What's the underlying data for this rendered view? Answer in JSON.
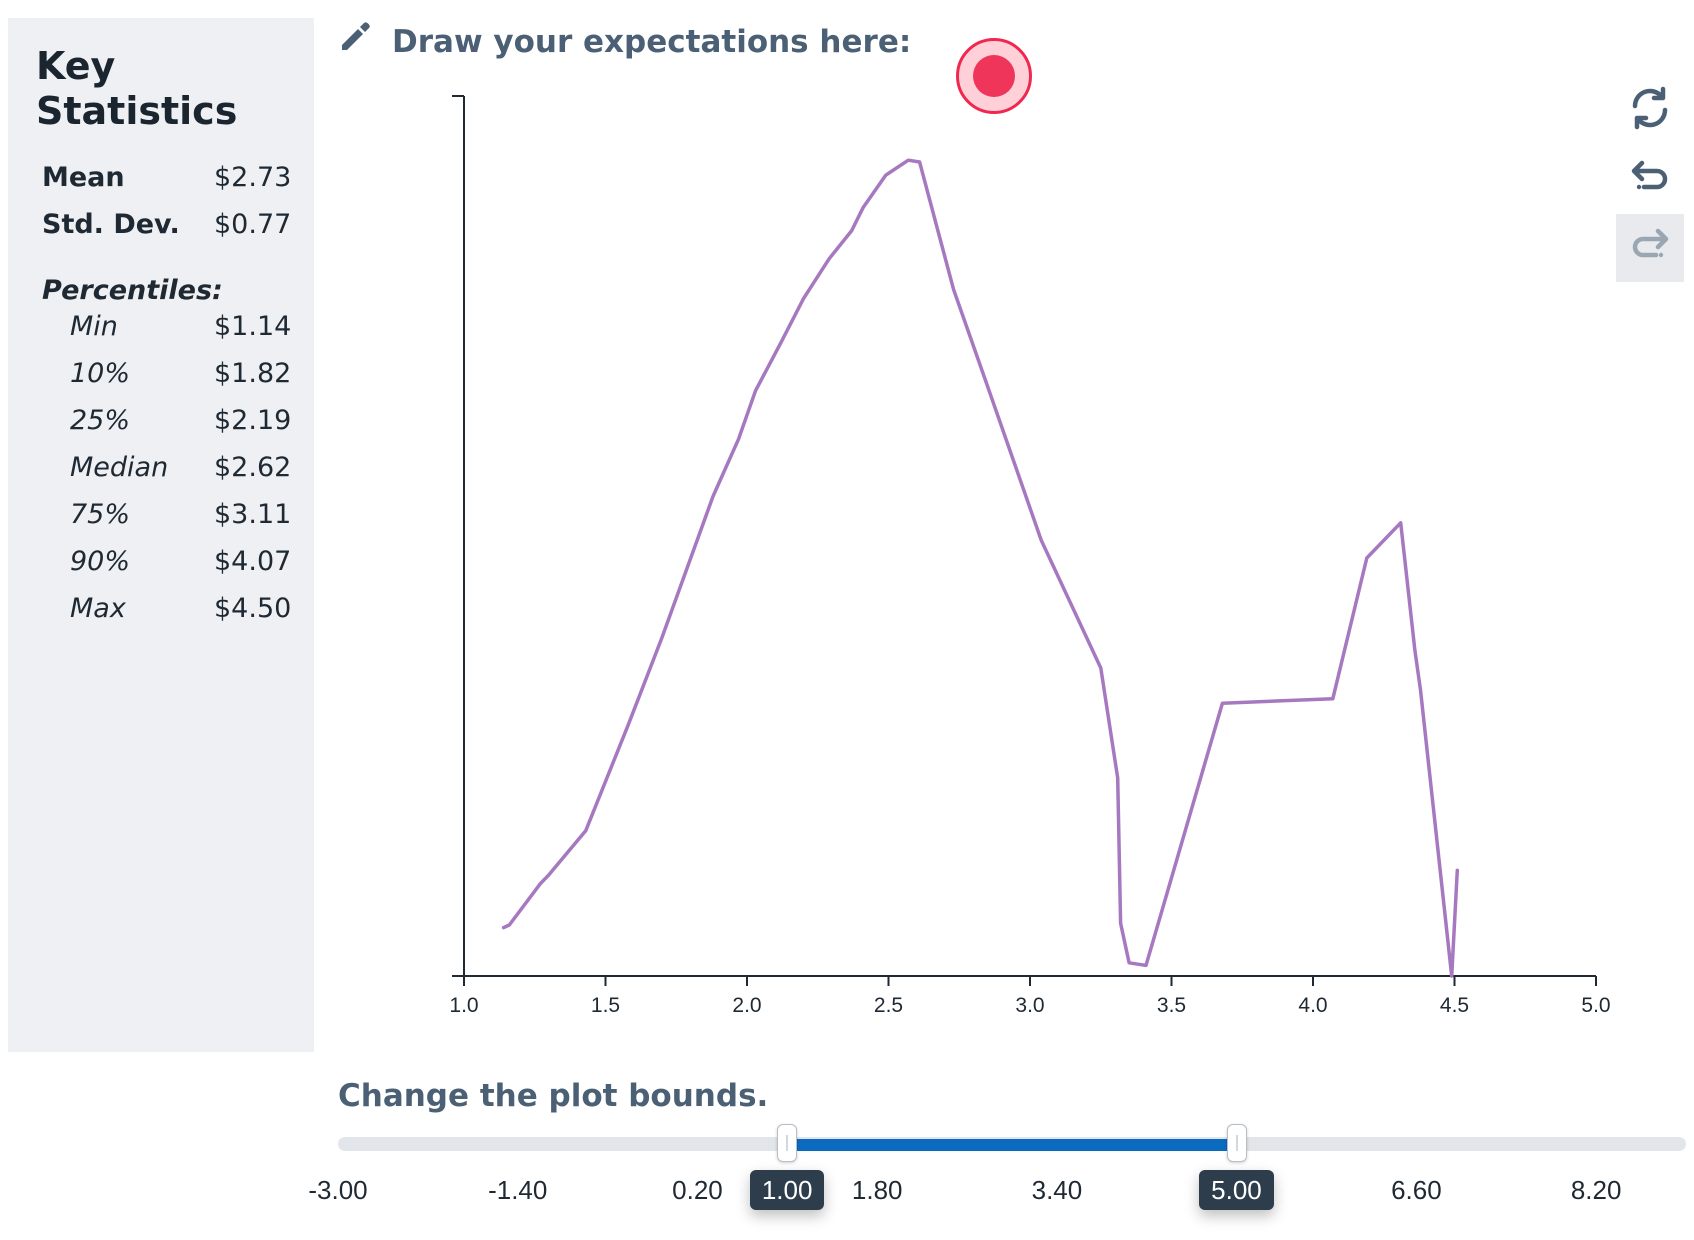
{
  "stats": {
    "title": "Key Statistics",
    "mean": {
      "label": "Mean",
      "value": "$2.73"
    },
    "std_dev": {
      "label": "Std. Dev.",
      "value": "$0.77"
    },
    "percentiles_heading": "Percentiles:",
    "percentiles": [
      {
        "label": "Min",
        "value": "$1.14"
      },
      {
        "label": "10%",
        "value": "$1.82"
      },
      {
        "label": "25%",
        "value": "$2.19"
      },
      {
        "label": "Median",
        "value": "$2.62"
      },
      {
        "label": "75%",
        "value": "$3.11"
      },
      {
        "label": "90%",
        "value": "$4.07"
      },
      {
        "label": "Max",
        "value": "$4.50"
      }
    ]
  },
  "header": {
    "title": "Draw your expectations here:",
    "icon": "pencil-icon"
  },
  "recording": {
    "icon": "record-dot-icon",
    "color": "#f0355a"
  },
  "toolbar": {
    "buttons": [
      {
        "name": "reset",
        "icon": "refresh-icon",
        "enabled": true
      },
      {
        "name": "undo",
        "icon": "undo-icon",
        "enabled": true
      },
      {
        "name": "redo",
        "icon": "redo-icon",
        "enabled": false
      }
    ]
  },
  "chart_data": {
    "type": "line",
    "xlim": [
      1.0,
      5.0
    ],
    "ylim": [
      0,
      1
    ],
    "x_ticks": [
      "1.0",
      "1.5",
      "2.0",
      "2.5",
      "3.0",
      "3.5",
      "4.0",
      "4.5",
      "5.0"
    ],
    "y_ticks": [],
    "grid": false,
    "series": [
      {
        "color": "#a678c0",
        "x": [
          1.14,
          1.16,
          1.27,
          1.3,
          1.43,
          1.58,
          1.7,
          1.88,
          1.97,
          2.03,
          2.12,
          2.2,
          2.29,
          2.37,
          2.41,
          2.49,
          2.57,
          2.61,
          2.73,
          2.85,
          3.04,
          3.25,
          3.31,
          3.32,
          3.35,
          3.41,
          3.68,
          4.07,
          4.19,
          4.31,
          4.36,
          4.38,
          4.49,
          4.51
        ],
        "y": [
          0.055,
          0.058,
          0.105,
          0.115,
          0.165,
          0.285,
          0.385,
          0.545,
          0.61,
          0.665,
          0.72,
          0.77,
          0.815,
          0.847,
          0.873,
          0.91,
          0.927,
          0.925,
          0.78,
          0.67,
          0.495,
          0.35,
          0.225,
          0.06,
          0.015,
          0.012,
          0.31,
          0.315,
          0.475,
          0.515,
          0.37,
          0.325,
          0.0,
          0.12
        ]
      }
    ]
  },
  "bounds": {
    "title": "Change the plot bounds.",
    "min": -3.0,
    "max": 9.0,
    "lower": 1.0,
    "upper": 5.0,
    "lower_label": "1.00",
    "upper_label": "5.00",
    "range_color": "#0b6bbf",
    "scale_labels": [
      "-3.00",
      "-1.40",
      "0.20",
      "1.80",
      "3.40",
      "6.60",
      "8.20"
    ],
    "scale_values": [
      -3.0,
      -1.4,
      0.2,
      1.8,
      3.4,
      6.6,
      8.2
    ]
  }
}
